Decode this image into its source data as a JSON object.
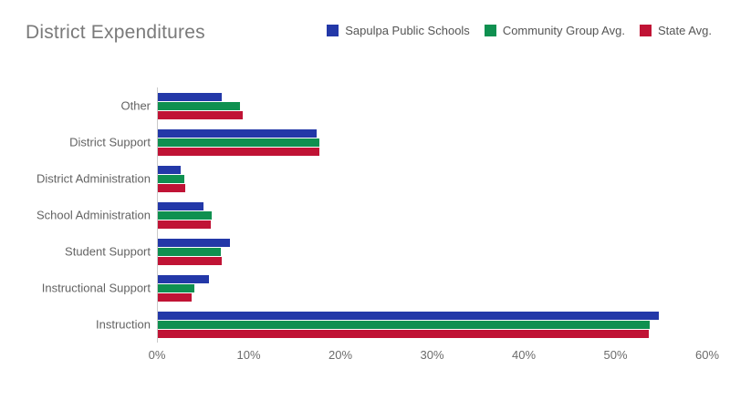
{
  "chart": {
    "title": "District Expenditures"
  },
  "chart_data": {
    "type": "bar",
    "orientation": "horizontal",
    "title": "District Expenditures",
    "xlabel": "",
    "ylabel": "",
    "xlim": [
      0,
      60
    ],
    "x_ticks": [
      "0%",
      "10%",
      "20%",
      "30%",
      "40%",
      "50%",
      "60%"
    ],
    "grid": false,
    "legend_position": "top-right",
    "categories_order": "top-to-bottom",
    "categories": [
      "Other",
      "District Support",
      "District Administration",
      "School Administration",
      "Student Support",
      "Instructional Support",
      "Instruction"
    ],
    "series": [
      {
        "name": "Sapulpa Public Schools",
        "color": "#2338a8",
        "values": [
          7.0,
          17.3,
          2.5,
          5.0,
          7.9,
          5.6,
          54.6
        ]
      },
      {
        "name": "Community Group Avg.",
        "color": "#0f9050",
        "values": [
          9.0,
          17.6,
          2.9,
          5.9,
          6.9,
          4.0,
          53.6
        ]
      },
      {
        "name": "State Avg.",
        "color": "#c01335",
        "values": [
          9.3,
          17.6,
          3.0,
          5.8,
          7.0,
          3.7,
          53.5
        ]
      }
    ]
  }
}
